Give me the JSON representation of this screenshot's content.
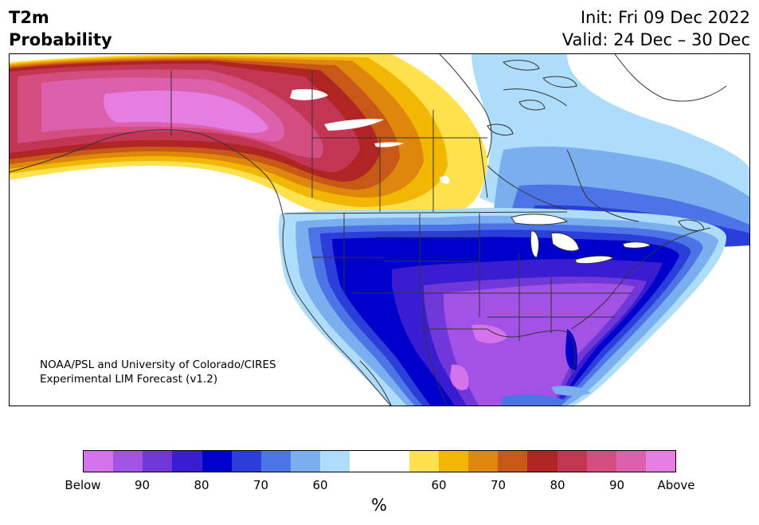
{
  "header": {
    "variable": "T2m",
    "product": "Probability",
    "init": "Init: Fri 09 Dec 2022",
    "valid": "Valid: 24 Dec – 30 Dec"
  },
  "map": {
    "credit_line1": "NOAA/PSL and University of Colorado/CIRES",
    "credit_line2": "Experimental LIM Forecast (v1.2)"
  },
  "colorbar": {
    "unit": "%",
    "ticks": [
      "Below",
      "90",
      "80",
      "70",
      "60",
      "60",
      "70",
      "80",
      "90",
      "Above"
    ],
    "colors": [
      "#d473ec",
      "#a352e6",
      "#7138d9",
      "#3b1dd1",
      "#0000cd",
      "#2a3fd9",
      "#4d74e6",
      "#7aafef",
      "#aedcfb",
      "#ffffff",
      "#ffffff",
      "#ffe04d",
      "#f2b705",
      "#df870c",
      "#c85817",
      "#b02424",
      "#c23553",
      "#d44d80",
      "#dd60ad",
      "#e67de0"
    ]
  },
  "colors": {
    "warm_above": "#e67de0",
    "cold_below": "#d473ec",
    "outline": "#333333"
  }
}
